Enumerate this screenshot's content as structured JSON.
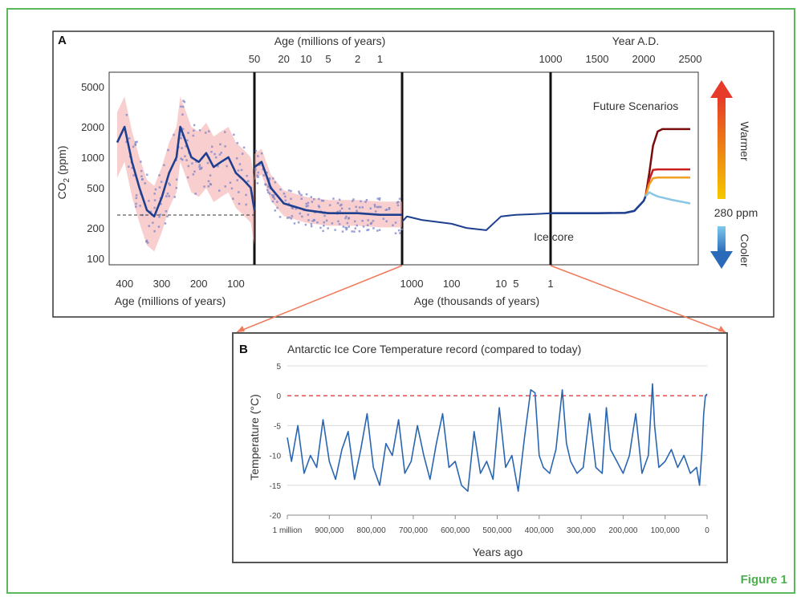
{
  "figure_label": "Figure 1",
  "colors": {
    "frame": "#5cb85c",
    "co2_line": "#1f3f8f",
    "uncertainty": "#f4a6a6",
    "proxy_points": "#7a84c8",
    "future_high": "#7a0c0c",
    "future_mid": "#c81e1e",
    "future_low": "#f0a020",
    "future_cool": "#8ac6e6",
    "temp_line": "#2a66b0",
    "zero_line": "#e23c3c",
    "warmer_arrow": "#e63a2a",
    "cooler_arrow": "#2a6ab8"
  },
  "chart_data": [
    {
      "panel": "A",
      "type": "line",
      "ylabel": "CO2 (ppm)",
      "yscale": "log",
      "yticks": [
        100,
        200,
        500,
        1000,
        2000,
        5000
      ],
      "ylim": [
        85,
        6000
      ],
      "top_axis_left": {
        "label": "Age (millions of years)",
        "ticks": [
          "50",
          "20",
          "10",
          "5",
          "2",
          "1"
        ]
      },
      "top_axis_right": {
        "label": "Year A.D.",
        "ticks": [
          "1000",
          "1500",
          "2000",
          "2500"
        ]
      },
      "bottom_axis_left": {
        "label": "Age (millions of years)",
        "ticks": [
          "400",
          "300",
          "200",
          "100"
        ]
      },
      "bottom_axis_right": {
        "label": "Age (thousands of years)",
        "ticks": [
          "1000",
          "100",
          "10",
          "5",
          "1"
        ]
      },
      "annotations": [
        "Future Scenarios",
        "Ice core",
        "280 ppm",
        "Warmer",
        "Cooler"
      ],
      "reference_level_ppm": 280,
      "segments": [
        {
          "name": "Deep time",
          "x_unit": "millions of years ago",
          "x": [
            420,
            400,
            380,
            360,
            340,
            320,
            300,
            280,
            260,
            250,
            240,
            220,
            200,
            180,
            160,
            140,
            120,
            100,
            80,
            60,
            50
          ],
          "y": [
            1400,
            2000,
            900,
            500,
            300,
            260,
            400,
            700,
            1000,
            2000,
            1600,
            1000,
            900,
            1100,
            800,
            900,
            1000,
            700,
            600,
            500,
            300
          ]
        },
        {
          "name": "Cenozoic",
          "x_unit": "millions of years ago",
          "x": [
            50,
            40,
            30,
            20,
            10,
            5,
            2,
            1,
            0.5
          ],
          "y": [
            800,
            900,
            500,
            350,
            300,
            280,
            280,
            270,
            270
          ]
        },
        {
          "name": "Ice core",
          "x_unit": "thousands of years ago",
          "x": [
            1000,
            800,
            400,
            100,
            50,
            20,
            10,
            5,
            2,
            1
          ],
          "y": [
            230,
            260,
            240,
            220,
            200,
            190,
            260,
            270,
            275,
            280
          ]
        },
        {
          "name": "Historical",
          "x_unit": "year A.D.",
          "x": [
            1000,
            1500,
            1800,
            1900,
            2000,
            2020
          ],
          "y": [
            280,
            280,
            282,
            295,
            370,
            410
          ]
        }
      ],
      "future": {
        "x_unit": "year A.D.",
        "x": [
          2020,
          2060,
          2100,
          2150,
          2200,
          2300,
          2500
        ],
        "series": [
          {
            "values": [
              410,
              700,
              1300,
              1800,
              1900,
              1900,
              1900
            ]
          },
          {
            "values": [
              410,
              600,
              750,
              760,
              760,
              760,
              760
            ]
          },
          {
            "values": [
              410,
              540,
              620,
              630,
              630,
              630,
              630
            ]
          },
          {
            "values": [
              410,
              450,
              430,
              410,
              400,
              380,
              350
            ]
          }
        ]
      }
    },
    {
      "panel": "B",
      "type": "line",
      "title": "Antarctic Ice Core Temperature record (compared to today)",
      "xlabel": "Years ago",
      "ylabel": "Temperature (°C)",
      "x_ticks": [
        "1 million",
        "900,000",
        "800,000",
        "700,000",
        "600,000",
        "500,000",
        "400,000",
        "300,000",
        "200,000",
        "100,000",
        "0"
      ],
      "y_ticks": [
        5,
        0,
        -5,
        -10,
        -15,
        -20
      ],
      "ylim": [
        -20,
        5
      ],
      "xlim": [
        1000000,
        0
      ],
      "reference_line": 0,
      "x": [
        1000000,
        990000,
        975000,
        960000,
        945000,
        930000,
        915000,
        900000,
        885000,
        870000,
        855000,
        840000,
        825000,
        810000,
        795000,
        780000,
        765000,
        750000,
        735000,
        720000,
        705000,
        690000,
        675000,
        660000,
        645000,
        630000,
        615000,
        600000,
        585000,
        570000,
        555000,
        540000,
        525000,
        510000,
        495000,
        480000,
        465000,
        450000,
        435000,
        420000,
        410000,
        400000,
        390000,
        375000,
        360000,
        345000,
        335000,
        325000,
        310000,
        295000,
        280000,
        265000,
        250000,
        240000,
        230000,
        215000,
        200000,
        185000,
        170000,
        155000,
        140000,
        130000,
        125000,
        115000,
        100000,
        85000,
        70000,
        55000,
        40000,
        25000,
        18000,
        12000,
        8000,
        4000,
        0
      ],
      "y": [
        -7,
        -11,
        -5,
        -13,
        -10,
        -12,
        -4,
        -11,
        -14,
        -9,
        -6,
        -14,
        -9,
        -3,
        -12,
        -15,
        -8,
        -10,
        -4,
        -13,
        -11,
        -5,
        -10,
        -14,
        -8,
        -3,
        -12,
        -11,
        -15,
        -16,
        -6,
        -13,
        -11,
        -14,
        -2,
        -12,
        -10,
        -16,
        -7,
        1,
        0.5,
        -10,
        -12,
        -13,
        -9,
        1,
        -8,
        -11,
        -13,
        -12,
        -3,
        -12,
        -13,
        -2,
        -9,
        -11,
        -13,
        -10,
        -3,
        -13,
        -10,
        2,
        -5,
        -12,
        -11,
        -9,
        -12,
        -10,
        -13,
        -12,
        -15,
        -9,
        -3,
        0,
        0.3
      ]
    }
  ]
}
